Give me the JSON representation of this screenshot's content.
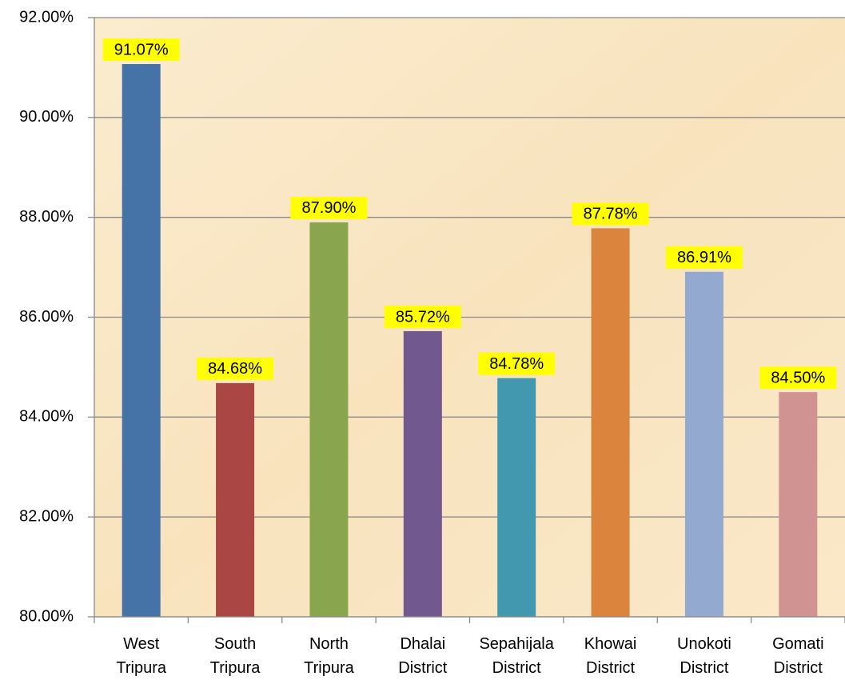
{
  "chart_data": {
    "type": "bar",
    "categories": [
      "West Tripura",
      "South Tripura",
      "North Tripura",
      "Dhalai District",
      "Sepahijala District",
      "Khowai District",
      "Unokoti District",
      "Gomati District"
    ],
    "values": [
      91.07,
      84.68,
      87.9,
      85.72,
      84.78,
      87.78,
      86.91,
      84.5
    ],
    "value_labels": [
      "91.07%",
      "84.68%",
      "87.90%",
      "85.72%",
      "84.78%",
      "87.78%",
      "86.91%",
      "84.50%"
    ],
    "colors": [
      "#4572a7",
      "#aa4643",
      "#89a54e",
      "#71588f",
      "#4198af",
      "#db843d",
      "#93a9cf",
      "#d19392"
    ],
    "ylim": [
      80,
      92
    ],
    "yticks": [
      {
        "value": 80,
        "label": "80.00%"
      },
      {
        "value": 82,
        "label": "82.00%"
      },
      {
        "value": 84,
        "label": "84.00%"
      },
      {
        "value": 86,
        "label": "86.00%"
      },
      {
        "value": 88,
        "label": "88.00%"
      },
      {
        "value": 90,
        "label": "90.00%"
      },
      {
        "value": 92,
        "label": "92.00%"
      }
    ],
    "grid": true
  }
}
